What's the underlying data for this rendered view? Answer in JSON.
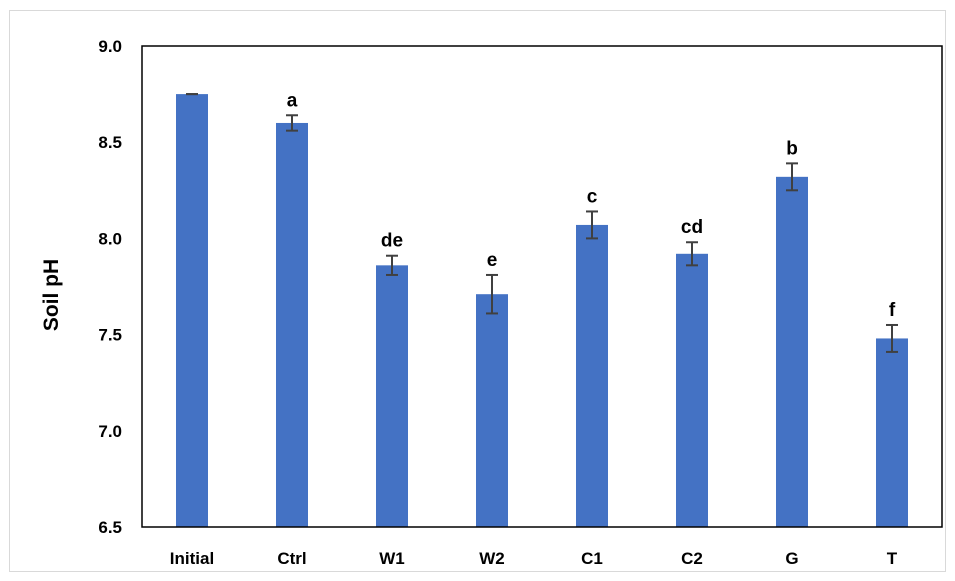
{
  "chart_data": {
    "type": "bar",
    "title": "",
    "xlabel": "",
    "ylabel": "Soil pH",
    "ylim": [
      6.5,
      9.0
    ],
    "yticks": [
      6.5,
      7.0,
      7.5,
      8.0,
      8.5,
      9.0
    ],
    "ytick_labels": [
      "6.5",
      "7.0",
      "7.5",
      "8.0",
      "8.5",
      "9.0"
    ],
    "categories": [
      "Initial",
      "Ctrl",
      "W1",
      "W2",
      "C1",
      "C2",
      "G",
      "T"
    ],
    "values": [
      8.75,
      8.6,
      7.86,
      7.71,
      8.07,
      7.92,
      8.32,
      7.48
    ],
    "errors": [
      0.0,
      0.04,
      0.05,
      0.1,
      0.07,
      0.06,
      0.07,
      0.07
    ],
    "significance_labels": [
      "",
      "a",
      "de",
      "e",
      "c",
      "cd",
      "b",
      "f"
    ],
    "bar_color": "#4472c4",
    "error_color": "#404040",
    "grid": false,
    "legend": "none"
  }
}
